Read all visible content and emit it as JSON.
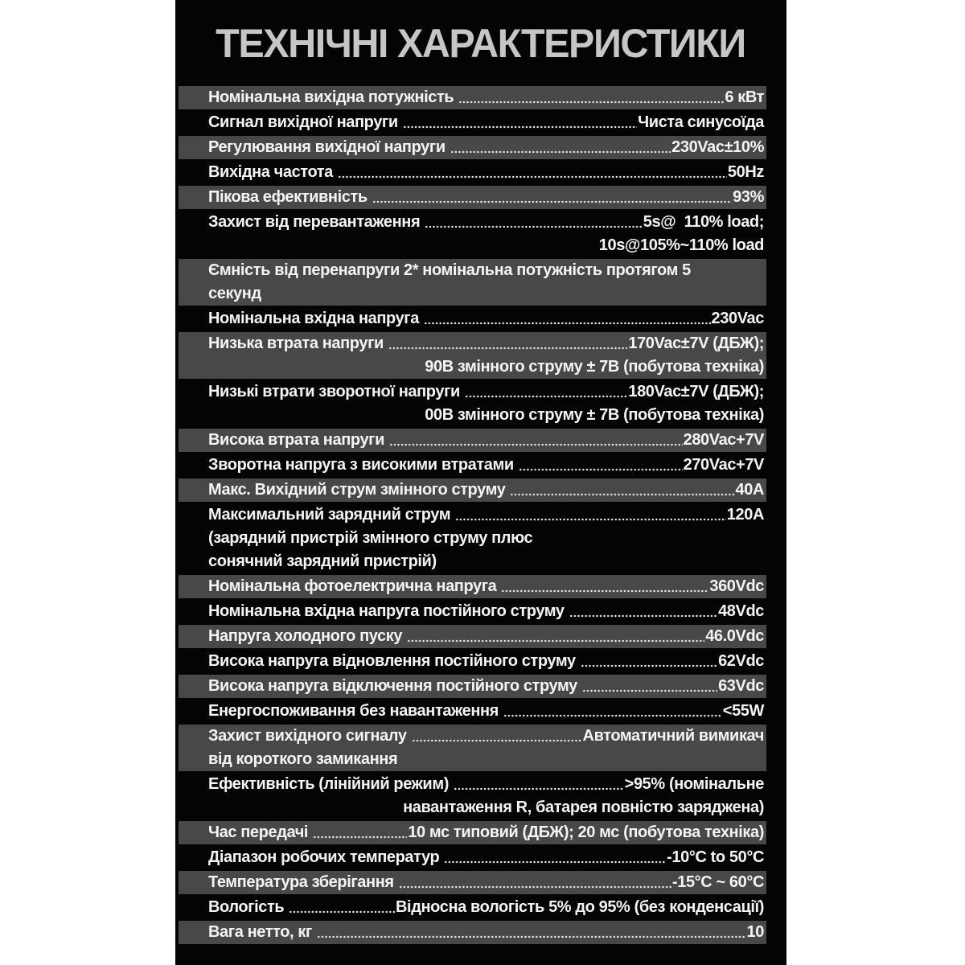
{
  "title": "ТЕХНІЧНІ ХАРАКТЕРИСТИКИ",
  "colors": {
    "page_bg": "#ffffff",
    "panel_bg": "#040407",
    "row_gray": "#48484a",
    "row_black": "#040407",
    "row_text": "#f4f4f4",
    "title_text": "#c6c6c6",
    "leader_dots": "#e9e9e9"
  },
  "table": {
    "rows": [
      {
        "label": "Номінальна вихідна потужність",
        "dots": true,
        "value": "6 кВт",
        "shade": "gray",
        "extra": []
      },
      {
        "label": "Сигнал вихідної напруги",
        "dots": true,
        "value": "Чиста синусоїда",
        "shade": "black",
        "extra": []
      },
      {
        "label": "Регулювання вихідної напруги",
        "dots": true,
        "value": "230Vac±10%",
        "shade": "gray",
        "extra": []
      },
      {
        "label": "Вихідна частота",
        "dots": true,
        "value": "50Hz",
        "shade": "black",
        "extra": []
      },
      {
        "label": "Пікова ефективність",
        "dots": true,
        "value": "93%",
        "shade": "gray",
        "extra": []
      },
      {
        "label": "Захист від перевантаження",
        "dots": true,
        "value": "5s@  110% load;",
        "shade": "black",
        "extra": [
          {
            "text": "10s@105%~110% load",
            "align": "right"
          }
        ]
      },
      {
        "label": "Ємність від перенапруги 2* номінальна потужність протягом 5",
        "dots": false,
        "value": "",
        "shade": "gray",
        "extra": [
          {
            "text": "секунд",
            "align": "left"
          }
        ]
      },
      {
        "label": "Номінальна вхідна напруга",
        "dots": true,
        "value": "230Vac",
        "shade": "black",
        "extra": []
      },
      {
        "label": "Низька втрата напруги",
        "dots": true,
        "value": "170Vac±7V (ДБЖ);",
        "shade": "gray",
        "extra": [
          {
            "text": "90В змінного струму ± 7В (побутова техніка)",
            "align": "right"
          }
        ]
      },
      {
        "label": "Низькі втрати зворотної напруги",
        "dots": true,
        "value": "180Vac±7V (ДБЖ);",
        "shade": "black",
        "extra": [
          {
            "text": "00В змінного струму ± 7В (побутова техніка)",
            "align": "right"
          }
        ]
      },
      {
        "label": "Висока втрата напруги",
        "dots": true,
        "value": "280Vac+7V",
        "shade": "gray",
        "extra": []
      },
      {
        "label": "Зворотна напруга з високими втратами",
        "dots": true,
        "value": "270Vac+7V",
        "shade": "black",
        "extra": []
      },
      {
        "label": "Макс. Вихідний струм змінного струму",
        "dots": true,
        "value": "40A",
        "shade": "gray",
        "extra": []
      },
      {
        "label": "Максимальний зарядний струм",
        "dots": true,
        "value": "120A",
        "shade": "black",
        "extra": [
          {
            "text": "(зарядний пристрій змінного струму плюс",
            "align": "left"
          },
          {
            "text": "сонячний зарядний пристрій)",
            "align": "left"
          }
        ]
      },
      {
        "label": "Номінальна фотоелектрична напруга",
        "dots": true,
        "value": "360Vdc",
        "shade": "gray",
        "extra": []
      },
      {
        "label": "Номінальна вхідна напруга постійного струму",
        "dots": true,
        "value": "48Vdc",
        "shade": "black",
        "extra": []
      },
      {
        "label": "Напруга холодного пуску",
        "dots": true,
        "value": "46.0Vdc",
        "shade": "gray",
        "extra": []
      },
      {
        "label": "Висока напруга відновлення постійного струму",
        "dots": true,
        "value": "62Vdc",
        "shade": "black",
        "extra": []
      },
      {
        "label": "Висока напруга відключення постійного струму",
        "dots": true,
        "value": "63Vdc",
        "shade": "gray",
        "extra": []
      },
      {
        "label": "Енергоспоживання без навантаження",
        "dots": true,
        "value": "<55W",
        "shade": "black",
        "extra": []
      },
      {
        "label": "Захист вихідного сигналу",
        "dots": true,
        "value": "Автоматичний вимикач",
        "shade": "gray",
        "extra": [
          {
            "text": "від короткого замикання",
            "align": "left"
          }
        ]
      },
      {
        "label": "Ефективність (лінійний режим)",
        "dots": true,
        "value": ">95% (номінальне",
        "shade": "black",
        "extra": [
          {
            "text": "навантаження R, батарея повністю заряджена)",
            "align": "right"
          }
        ]
      },
      {
        "label": "Час передачі",
        "dots": true,
        "value": "10 мс типовий (ДБЖ); 20 мс (побутова техніка)",
        "shade": "gray",
        "extra": []
      },
      {
        "label": "Діапазон робочих температур",
        "dots": true,
        "value": "-10°C to 50°C",
        "shade": "black",
        "extra": []
      },
      {
        "label": "Температура зберігання",
        "dots": true,
        "value": "-15°C ~ 60°C",
        "shade": "gray",
        "extra": []
      },
      {
        "label": "Вологість",
        "dots": true,
        "value": "Відносна вологість 5% до 95% (без конденсації)",
        "shade": "black",
        "extra": []
      },
      {
        "label": "Вага нетто, кг",
        "dots": true,
        "value": "10",
        "shade": "gray",
        "extra": []
      }
    ]
  }
}
